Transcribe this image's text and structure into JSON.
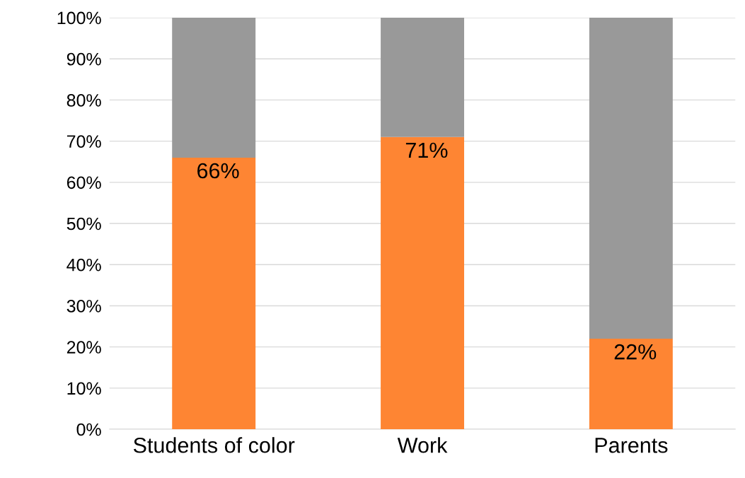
{
  "chart_data": {
    "type": "bar",
    "stacked": true,
    "categories": [
      "Students of color",
      "Work",
      "Parents"
    ],
    "series": [
      {
        "color": "#fe8533",
        "values": [
          66,
          71,
          22
        ],
        "value_labels": [
          "66%",
          "71%",
          "22%"
        ]
      },
      {
        "color": "#999999",
        "values": [
          34,
          29,
          78
        ]
      }
    ],
    "ylim": [
      0,
      100
    ],
    "yticks": [
      {
        "value": 0,
        "label": "0%"
      },
      {
        "value": 10,
        "label": "10%"
      },
      {
        "value": 20,
        "label": "20%"
      },
      {
        "value": 30,
        "label": "30%"
      },
      {
        "value": 40,
        "label": "40%"
      },
      {
        "value": 50,
        "label": "50%"
      },
      {
        "value": 60,
        "label": "60%"
      },
      {
        "value": 70,
        "label": "70%"
      },
      {
        "value": 80,
        "label": "80%"
      },
      {
        "value": 90,
        "label": "90%"
      },
      {
        "value": 100,
        "label": "100%"
      }
    ],
    "grid": "y"
  }
}
